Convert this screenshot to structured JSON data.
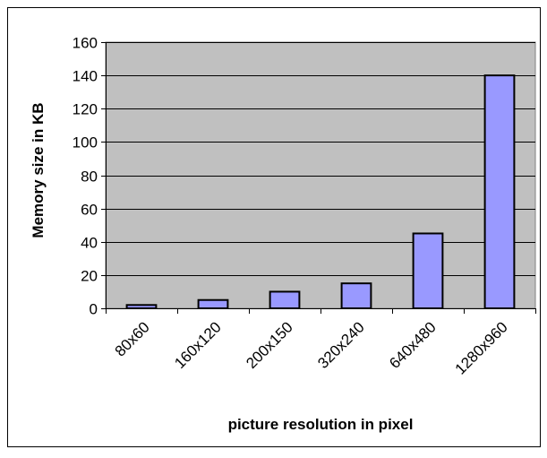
{
  "chart_data": {
    "type": "bar",
    "title": "",
    "xlabel": "picture resolution in pixel",
    "ylabel": "Memory size in KB",
    "categories": [
      "80x60",
      "160x120",
      "200x150",
      "320x240",
      "640x480",
      "1280x960"
    ],
    "values": [
      2,
      5,
      10,
      15,
      45,
      140
    ],
    "ylim": [
      0,
      160
    ],
    "yticks": [
      "0",
      "20",
      "40",
      "60",
      "80",
      "100",
      "120",
      "140",
      "160"
    ],
    "grid": true,
    "legend": "none",
    "colors": {
      "plot_background": "#c0c0c0",
      "bar_fill": "#9999ff",
      "bar_stroke": "#000000",
      "gridline": "#000000"
    }
  }
}
